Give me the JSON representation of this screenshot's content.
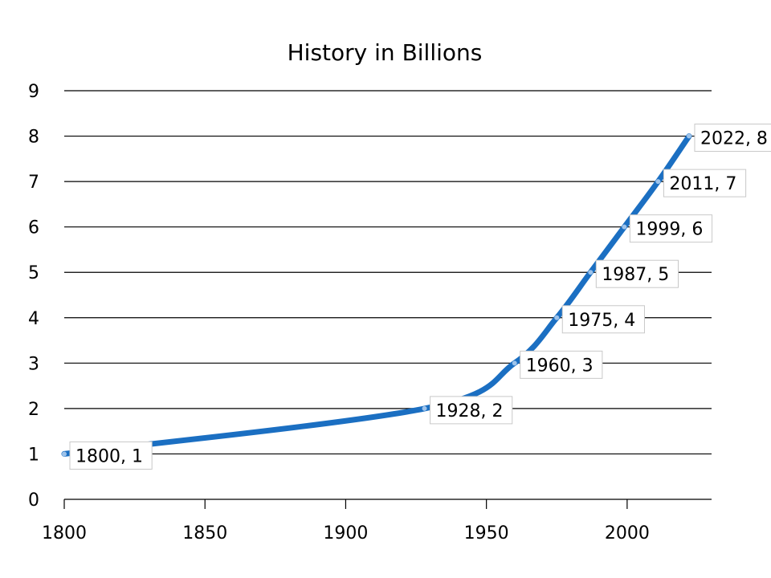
{
  "chart_data": {
    "type": "line",
    "title": "History in Billions",
    "xlabel": "",
    "ylabel": "",
    "xlim": [
      1800,
      2030
    ],
    "ylim": [
      0,
      9
    ],
    "x_ticks": [
      1800,
      1850,
      1900,
      1950,
      2000
    ],
    "y_ticks": [
      0,
      1,
      2,
      3,
      4,
      5,
      6,
      7,
      8,
      9
    ],
    "grid": true,
    "legend": "none",
    "series": [
      {
        "color": "#1b6fc2",
        "x": [
          1800,
          1928,
          1960,
          1975,
          1987,
          1999,
          2011,
          2022
        ],
        "y": [
          1,
          2,
          3,
          4,
          5,
          6,
          7,
          8
        ]
      }
    ],
    "data_labels": [
      "1800, 1",
      "1928, 2",
      "1960, 3",
      "1975, 4",
      "1987, 5",
      "1999, 6",
      "2011, 7",
      "2022, 8"
    ]
  }
}
